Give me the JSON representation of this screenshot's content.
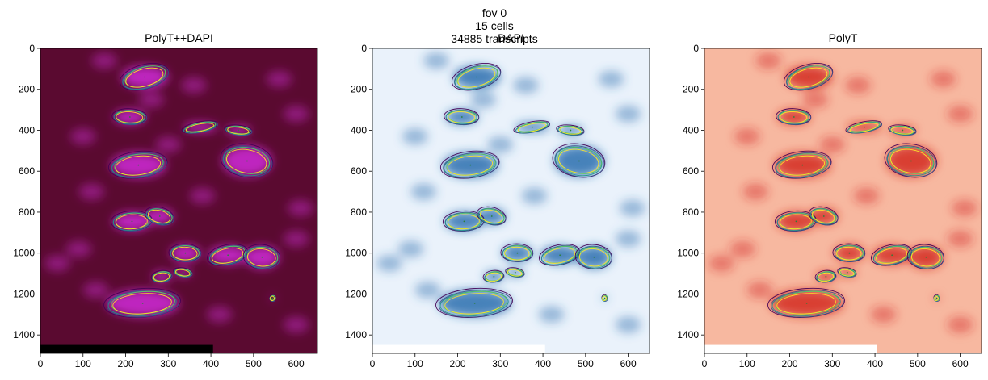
{
  "figure": {
    "suptitle_lines": [
      "fov 0",
      "15 cells",
      "34885 transcripts"
    ]
  },
  "chart_data": [
    {
      "type": "heatmap",
      "title": "PolyT++DAPI",
      "colormap": "magenta-composite",
      "xlim": [
        0,
        650
      ],
      "ylim": [
        1490,
        0
      ],
      "xticks": [
        0,
        100,
        200,
        300,
        400,
        500,
        600
      ],
      "yticks": [
        0,
        200,
        400,
        600,
        800,
        1000,
        1200,
        1400
      ],
      "overlay": "cell outlines (viridis contours)",
      "background_color": "#5a0a30",
      "blob_color": "#d02ad8",
      "scale_bar": {
        "color": "#000000",
        "x_end": 405
      }
    },
    {
      "type": "heatmap",
      "title": "DAPI",
      "colormap": "Blues",
      "xlim": [
        0,
        650
      ],
      "ylim": [
        1490,
        0
      ],
      "xticks": [
        0,
        100,
        200,
        300,
        400,
        500,
        600
      ],
      "yticks": [
        0,
        200,
        400,
        600,
        800,
        1000,
        1200,
        1400
      ],
      "overlay": "cell outlines (viridis contours)",
      "background_color": "#eaf2fb",
      "blob_color": "#2a6eaf",
      "scale_bar": {
        "color": "#ffffff",
        "x_end": 405
      }
    },
    {
      "type": "heatmap",
      "title": "PolyT",
      "colormap": "Reds",
      "xlim": [
        0,
        650
      ],
      "ylim": [
        1490,
        0
      ],
      "xticks": [
        0,
        100,
        200,
        300,
        400,
        500,
        600
      ],
      "yticks": [
        0,
        200,
        400,
        600,
        800,
        1000,
        1200,
        1400
      ],
      "overlay": "cell outlines (viridis contours)",
      "background_color": "#f7b8a0",
      "blob_color": "#d3281f",
      "scale_bar": {
        "color": "#ffffff",
        "x_end": 405
      }
    }
  ],
  "cells": [
    {
      "x": 245,
      "y": 140,
      "rx": 55,
      "ry": 55
    },
    {
      "x": 210,
      "y": 335,
      "rx": 38,
      "ry": 35
    },
    {
      "x": 375,
      "y": 385,
      "rx": 40,
      "ry": 22
    },
    {
      "x": 465,
      "y": 400,
      "rx": 30,
      "ry": 20
    },
    {
      "x": 230,
      "y": 570,
      "rx": 65,
      "ry": 60
    },
    {
      "x": 485,
      "y": 550,
      "rx": 58,
      "ry": 75
    },
    {
      "x": 215,
      "y": 845,
      "rx": 45,
      "ry": 45
    },
    {
      "x": 280,
      "y": 820,
      "rx": 32,
      "ry": 38
    },
    {
      "x": 340,
      "y": 1000,
      "rx": 35,
      "ry": 40
    },
    {
      "x": 440,
      "y": 1010,
      "rx": 45,
      "ry": 45
    },
    {
      "x": 520,
      "y": 1020,
      "rx": 40,
      "ry": 55
    },
    {
      "x": 285,
      "y": 1115,
      "rx": 22,
      "ry": 25
    },
    {
      "x": 335,
      "y": 1095,
      "rx": 20,
      "ry": 18
    },
    {
      "x": 240,
      "y": 1245,
      "rx": 85,
      "ry": 65
    },
    {
      "x": 545,
      "y": 1220,
      "rx": 5,
      "ry": 12
    }
  ]
}
